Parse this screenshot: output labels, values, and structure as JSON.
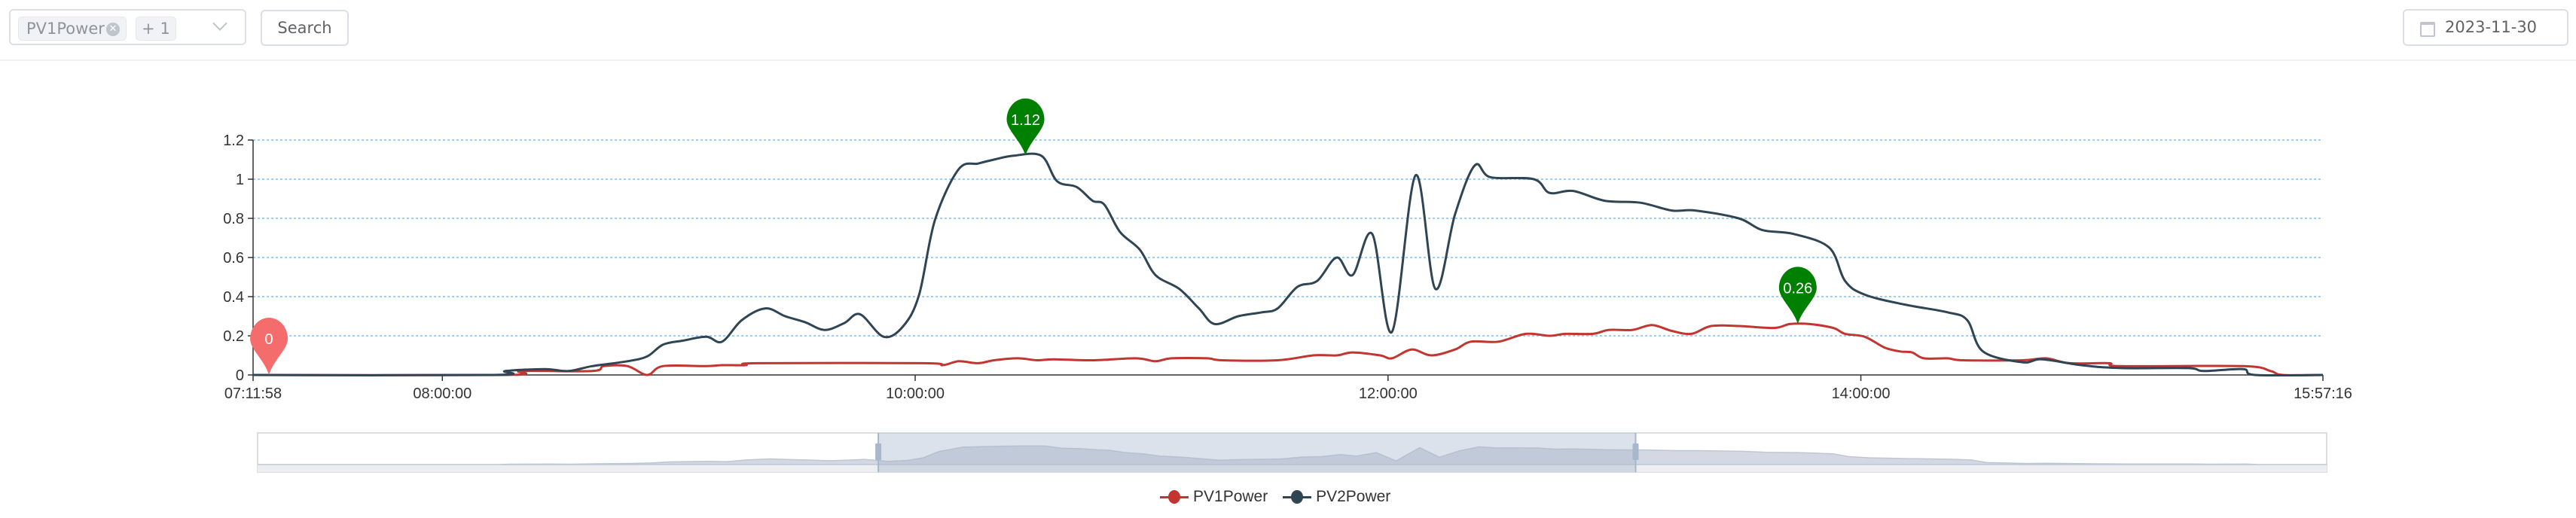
{
  "toolbar": {
    "select_tag": "PV1Power",
    "select_more": "+ 1",
    "search_label": "Search",
    "date_value": "2023-11-30"
  },
  "legend": [
    "PV1Power",
    "PV2Power"
  ],
  "chart_data": {
    "type": "line",
    "x_type": "time",
    "x_ticks": [
      "07:11:58",
      "08:00:00",
      "10:00:00",
      "12:00:00",
      "14:00:00",
      "15:57:16"
    ],
    "xlim": [
      "07:11:58",
      "15:57:16"
    ],
    "ylim": [
      0,
      1.2
    ],
    "y_ticks": [
      0,
      0.2,
      0.4,
      0.6,
      0.8,
      1,
      1.2
    ],
    "grid": "horizontal dashed",
    "legend_position": "bottom-center",
    "series": [
      {
        "name": "PV1Power",
        "color": "#c23531",
        "points": [
          [
            "07:11:58",
            0
          ],
          [
            "08:16",
            0
          ],
          [
            "08:20",
            0.02
          ],
          [
            "08:38",
            0.02
          ],
          [
            "08:41",
            0.045
          ],
          [
            "08:47",
            0.045
          ],
          [
            "08:52",
            0
          ],
          [
            "08:56",
            0.045
          ],
          [
            "09:07",
            0.045
          ],
          [
            "09:11",
            0.05
          ],
          [
            "09:17",
            0.05
          ],
          [
            "09:20",
            0.06
          ],
          [
            "10:02",
            0.06
          ],
          [
            "10:07",
            0.05
          ],
          [
            "10:11",
            0.07
          ],
          [
            "10:16",
            0.06
          ],
          [
            "10:20",
            0.075
          ],
          [
            "10:26",
            0.085
          ],
          [
            "10:31",
            0.075
          ],
          [
            "10:35",
            0.08
          ],
          [
            "10:45",
            0.075
          ],
          [
            "10:56",
            0.085
          ],
          [
            "11:01",
            0.07
          ],
          [
            "11:05",
            0.085
          ],
          [
            "11:14",
            0.085
          ],
          [
            "11:18",
            0.075
          ],
          [
            "11:32",
            0.075
          ],
          [
            "11:41",
            0.1
          ],
          [
            "11:47",
            0.1
          ],
          [
            "11:51",
            0.115
          ],
          [
            "11:58",
            0.1
          ],
          [
            "12:01",
            0.085
          ],
          [
            "12:06",
            0.13
          ],
          [
            "12:11",
            0.1
          ],
          [
            "12:17",
            0.13
          ],
          [
            "12:21",
            0.17
          ],
          [
            "12:28",
            0.17
          ],
          [
            "12:35",
            0.21
          ],
          [
            "12:41",
            0.2
          ],
          [
            "12:45",
            0.21
          ],
          [
            "12:52",
            0.21
          ],
          [
            "12:56",
            0.23
          ],
          [
            "13:02",
            0.23
          ],
          [
            "13:07",
            0.255
          ],
          [
            "13:12",
            0.225
          ],
          [
            "13:17",
            0.21
          ],
          [
            "13:22",
            0.25
          ],
          [
            "13:29",
            0.25
          ],
          [
            "13:38",
            0.24
          ],
          [
            "13:42",
            0.26
          ],
          [
            "13:47",
            0.26
          ],
          [
            "13:53",
            0.24
          ],
          [
            "13:56",
            0.21
          ],
          [
            "14:01",
            0.195
          ],
          [
            "14:06",
            0.14
          ],
          [
            "14:10",
            0.12
          ],
          [
            "14:13",
            0.115
          ],
          [
            "14:16",
            0.085
          ],
          [
            "14:22",
            0.085
          ],
          [
            "14:26",
            0.075
          ],
          [
            "14:41",
            0.075
          ],
          [
            "14:47",
            0.085
          ],
          [
            "14:53",
            0.06
          ],
          [
            "15:03",
            0.06
          ],
          [
            "15:06",
            0.045
          ],
          [
            "15:37",
            0.045
          ],
          [
            "15:44",
            0.02
          ],
          [
            "15:47",
            0
          ],
          [
            "15:57:16",
            0
          ]
        ]
      },
      {
        "name": "PV2Power",
        "color": "#2f4554",
        "points": [
          [
            "07:11:58",
            0
          ],
          [
            "08:13",
            0
          ],
          [
            "08:16",
            0.02
          ],
          [
            "08:26",
            0.03
          ],
          [
            "08:32",
            0.02
          ],
          [
            "08:38",
            0.045
          ],
          [
            "08:47",
            0.07
          ],
          [
            "08:52",
            0.095
          ],
          [
            "08:56",
            0.155
          ],
          [
            "09:01",
            0.175
          ],
          [
            "09:07",
            0.195
          ],
          [
            "09:11",
            0.17
          ],
          [
            "09:16",
            0.28
          ],
          [
            "09:22",
            0.34
          ],
          [
            "09:27",
            0.3
          ],
          [
            "09:32",
            0.27
          ],
          [
            "09:37",
            0.23
          ],
          [
            "09:42",
            0.265
          ],
          [
            "09:46",
            0.31
          ],
          [
            "09:52",
            0.195
          ],
          [
            "09:57",
            0.25
          ],
          [
            "10:01",
            0.41
          ],
          [
            "10:05",
            0.79
          ],
          [
            "10:11",
            1.05
          ],
          [
            "10:16",
            1.08
          ],
          [
            "10:20",
            1.1
          ],
          [
            "10:25",
            1.12
          ],
          [
            "10:32",
            1.12
          ],
          [
            "10:36",
            0.99
          ],
          [
            "10:41",
            0.96
          ],
          [
            "10:45",
            0.89
          ],
          [
            "10:48",
            0.87
          ],
          [
            "10:52",
            0.73
          ],
          [
            "10:57",
            0.64
          ],
          [
            "11:01",
            0.51
          ],
          [
            "11:07",
            0.44
          ],
          [
            "11:12",
            0.34
          ],
          [
            "11:16",
            0.26
          ],
          [
            "11:22",
            0.3
          ],
          [
            "11:28",
            0.32
          ],
          [
            "11:32",
            0.34
          ],
          [
            "11:37",
            0.45
          ],
          [
            "11:42",
            0.48
          ],
          [
            "11:47",
            0.6
          ],
          [
            "11:51",
            0.51
          ],
          [
            "11:56",
            0.72
          ],
          [
            "12:01",
            0.22
          ],
          [
            "12:07",
            1.02
          ],
          [
            "12:12",
            0.44
          ],
          [
            "12:17",
            0.82
          ],
          [
            "12:22",
            1.07
          ],
          [
            "12:26",
            1.01
          ],
          [
            "12:37",
            1.0
          ],
          [
            "12:41",
            0.93
          ],
          [
            "12:47",
            0.94
          ],
          [
            "12:55",
            0.89
          ],
          [
            "13:04",
            0.88
          ],
          [
            "13:12",
            0.84
          ],
          [
            "13:18",
            0.84
          ],
          [
            "13:29",
            0.8
          ],
          [
            "13:35",
            0.74
          ],
          [
            "13:43",
            0.72
          ],
          [
            "13:52",
            0.65
          ],
          [
            "13:56",
            0.48
          ],
          [
            "14:01",
            0.41
          ],
          [
            "14:11",
            0.36
          ],
          [
            "14:22",
            0.32
          ],
          [
            "14:27",
            0.28
          ],
          [
            "14:31",
            0.12
          ],
          [
            "14:41",
            0.065
          ],
          [
            "14:46",
            0.08
          ],
          [
            "14:56",
            0.05
          ],
          [
            "15:06",
            0.035
          ],
          [
            "15:23",
            0.035
          ],
          [
            "15:27",
            0.02
          ],
          [
            "15:37",
            0.03
          ],
          [
            "15:40",
            0
          ],
          [
            "15:57:16",
            0
          ]
        ]
      }
    ],
    "mark_points": [
      {
        "series": "PV2Power",
        "type": "max",
        "label": "1.12",
        "time": "10:28",
        "value": 1.12,
        "color": "#008000"
      },
      {
        "series": "PV1Power",
        "type": "max",
        "label": "0.26",
        "time": "13:44",
        "value": 0.26,
        "color": "#008000"
      },
      {
        "series": "PV1Power",
        "type": "min",
        "label": "0",
        "time": "07:16",
        "value": 0,
        "color": "#f56c6c"
      }
    ],
    "data_zoom": {
      "start_percent": 30,
      "end_percent": 66.6
    }
  }
}
